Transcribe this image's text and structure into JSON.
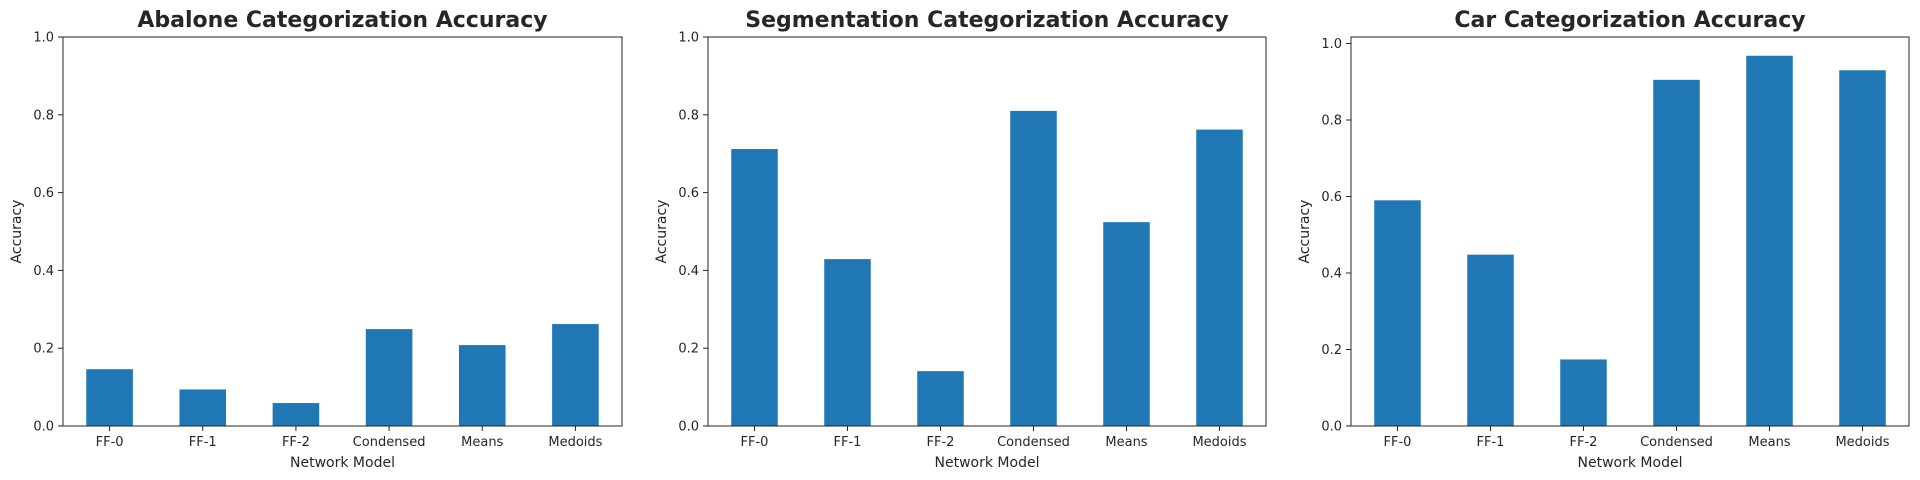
{
  "chart_data": [
    {
      "type": "bar",
      "title": "Abalone Categorization Accuracy",
      "xlabel": "Network Model",
      "ylabel": "Accuracy",
      "categories": [
        "FF-0",
        "FF-1",
        "FF-2",
        "Condensed",
        "Means",
        "Medoids"
      ],
      "values": [
        0.146,
        0.094,
        0.059,
        0.249,
        0.208,
        0.262
      ],
      "ylim": [
        0,
        1.0
      ],
      "yticks": [
        "0.0",
        "0.2",
        "0.4",
        "0.6",
        "0.8",
        "1.0"
      ],
      "bar_color": "#1f77b4",
      "grid": false
    },
    {
      "type": "bar",
      "title": "Segmentation Categorization Accuracy",
      "xlabel": "Network Model",
      "ylabel": "Accuracy",
      "categories": [
        "FF-0",
        "FF-1",
        "FF-2",
        "Condensed",
        "Means",
        "Medoids"
      ],
      "values": [
        0.712,
        0.429,
        0.141,
        0.81,
        0.524,
        0.762
      ],
      "ylim": [
        0,
        1.0
      ],
      "yticks": [
        "0.0",
        "0.2",
        "0.4",
        "0.6",
        "0.8",
        "1.0"
      ],
      "bar_color": "#1f77b4",
      "grid": false
    },
    {
      "type": "bar",
      "title": "Car Categorization Accuracy",
      "xlabel": "Network Model",
      "ylabel": "Accuracy",
      "categories": [
        "FF-0",
        "FF-1",
        "FF-2",
        "Condensed",
        "Means",
        "Medoids"
      ],
      "values": [
        0.59,
        0.448,
        0.174,
        0.905,
        0.968,
        0.93
      ],
      "ylim": [
        0,
        1.017
      ],
      "yticks": [
        "0.0",
        "0.2",
        "0.4",
        "0.6",
        "0.8",
        "1.0"
      ],
      "bar_color": "#1f77b4",
      "grid": false
    }
  ]
}
